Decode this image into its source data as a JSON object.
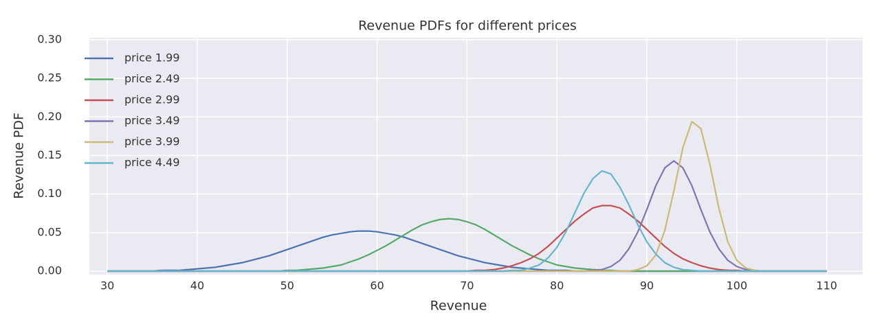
{
  "chart_data": {
    "type": "line",
    "title": "Revenue PDFs for different prices",
    "x_label": "Revenue",
    "y_label": "Revenue PDF",
    "x": [
      30,
      31,
      32,
      33,
      34,
      35,
      36,
      37,
      38,
      39,
      40,
      41,
      42,
      43,
      44,
      45,
      46,
      47,
      48,
      49,
      50,
      51,
      52,
      53,
      54,
      55,
      56,
      57,
      58,
      59,
      60,
      61,
      62,
      63,
      64,
      65,
      66,
      67,
      68,
      69,
      70,
      71,
      72,
      73,
      74,
      75,
      76,
      77,
      78,
      79,
      80,
      81,
      82,
      83,
      84,
      85,
      86,
      87,
      88,
      89,
      90,
      91,
      92,
      93,
      94,
      95,
      96,
      97,
      98,
      99,
      100,
      101,
      102,
      103,
      104,
      105,
      106,
      107,
      108,
      109,
      110
    ],
    "series": [
      {
        "name": "price 1.99",
        "color": "#4c72b0",
        "values": [
          0,
          0,
          0,
          0,
          0,
          0,
          0.001,
          0.001,
          0.001,
          0.002,
          0.003,
          0.004,
          0.005,
          0.007,
          0.009,
          0.011,
          0.014,
          0.017,
          0.02,
          0.024,
          0.028,
          0.032,
          0.036,
          0.04,
          0.044,
          0.047,
          0.049,
          0.051,
          0.052,
          0.052,
          0.051,
          0.049,
          0.047,
          0.044,
          0.04,
          0.036,
          0.032,
          0.028,
          0.024,
          0.02,
          0.017,
          0.014,
          0.011,
          0.009,
          0.007,
          0.005,
          0.004,
          0.003,
          0.002,
          0.001,
          0.001,
          0.001,
          0,
          0,
          0,
          0,
          0,
          0,
          0,
          0,
          0,
          0,
          0,
          0,
          0,
          0,
          0,
          0,
          0,
          0,
          0,
          0,
          0,
          0,
          0,
          0,
          0,
          0,
          0,
          0,
          0
        ]
      },
      {
        "name": "price 2.49",
        "color": "#55a868",
        "values": [
          0,
          0,
          0,
          0,
          0,
          0,
          0,
          0,
          0,
          0,
          0,
          0,
          0,
          0,
          0,
          0,
          0,
          0,
          0,
          0,
          0.001,
          0.001,
          0.002,
          0.003,
          0.004,
          0.006,
          0.008,
          0.012,
          0.016,
          0.021,
          0.027,
          0.033,
          0.04,
          0.047,
          0.054,
          0.06,
          0.064,
          0.067,
          0.068,
          0.067,
          0.064,
          0.06,
          0.054,
          0.047,
          0.04,
          0.033,
          0.027,
          0.021,
          0.016,
          0.012,
          0.008,
          0.006,
          0.004,
          0.003,
          0.002,
          0.001,
          0.001,
          0,
          0,
          0,
          0,
          0,
          0,
          0,
          0,
          0,
          0,
          0,
          0,
          0,
          0,
          0,
          0,
          0,
          0,
          0,
          0,
          0,
          0,
          0,
          0
        ]
      },
      {
        "name": "price 2.99",
        "color": "#c44e52",
        "values": [
          0,
          0,
          0,
          0,
          0,
          0,
          0,
          0,
          0,
          0,
          0,
          0,
          0,
          0,
          0,
          0,
          0,
          0,
          0,
          0,
          0,
          0,
          0,
          0,
          0,
          0,
          0,
          0,
          0,
          0,
          0,
          0,
          0,
          0,
          0,
          0,
          0,
          0,
          0,
          0,
          0,
          0.001,
          0.001,
          0.002,
          0.004,
          0.007,
          0.011,
          0.016,
          0.023,
          0.032,
          0.043,
          0.054,
          0.065,
          0.074,
          0.082,
          0.085,
          0.085,
          0.082,
          0.074,
          0.065,
          0.054,
          0.043,
          0.032,
          0.023,
          0.016,
          0.011,
          0.007,
          0.004,
          0.002,
          0.001,
          0.001,
          0,
          0,
          0,
          0,
          0,
          0,
          0,
          0,
          0,
          0
        ]
      },
      {
        "name": "price 3.49",
        "color": "#8172b2",
        "values": [
          0,
          0,
          0,
          0,
          0,
          0,
          0,
          0,
          0,
          0,
          0,
          0,
          0,
          0,
          0,
          0,
          0,
          0,
          0,
          0,
          0,
          0,
          0,
          0,
          0,
          0,
          0,
          0,
          0,
          0,
          0,
          0,
          0,
          0,
          0,
          0,
          0,
          0,
          0,
          0,
          0,
          0,
          0,
          0,
          0,
          0,
          0,
          0,
          0,
          0,
          0,
          0,
          0,
          0,
          0.001,
          0.002,
          0.006,
          0.014,
          0.029,
          0.051,
          0.08,
          0.111,
          0.134,
          0.143,
          0.134,
          0.111,
          0.08,
          0.051,
          0.029,
          0.014,
          0.006,
          0.002,
          0.001,
          0,
          0,
          0,
          0,
          0,
          0,
          0,
          0
        ]
      },
      {
        "name": "price 3.99",
        "color": "#ccb974",
        "values": [
          0,
          0,
          0,
          0,
          0,
          0,
          0,
          0,
          0,
          0,
          0,
          0,
          0,
          0,
          0,
          0,
          0,
          0,
          0,
          0,
          0,
          0,
          0,
          0,
          0,
          0,
          0,
          0,
          0,
          0,
          0,
          0,
          0,
          0,
          0,
          0,
          0,
          0,
          0,
          0,
          0,
          0,
          0,
          0,
          0,
          0,
          0,
          0,
          0,
          0,
          0,
          0,
          0,
          0,
          0,
          0,
          0,
          0,
          0,
          0.002,
          0.007,
          0.021,
          0.053,
          0.104,
          0.16,
          0.194,
          0.185,
          0.139,
          0.082,
          0.038,
          0.014,
          0.004,
          0.001,
          0,
          0,
          0,
          0,
          0,
          0,
          0,
          0
        ]
      },
      {
        "name": "price 4.49",
        "color": "#64b5cd",
        "values": [
          0,
          0,
          0,
          0,
          0,
          0,
          0,
          0,
          0,
          0,
          0,
          0,
          0,
          0,
          0,
          0,
          0,
          0,
          0,
          0,
          0,
          0,
          0,
          0,
          0,
          0,
          0,
          0,
          0,
          0,
          0,
          0,
          0,
          0,
          0,
          0,
          0,
          0,
          0,
          0,
          0,
          0,
          0,
          0,
          0,
          0.001,
          0.001,
          0.004,
          0.008,
          0.017,
          0.031,
          0.051,
          0.076,
          0.101,
          0.12,
          0.13,
          0.126,
          0.109,
          0.086,
          0.06,
          0.038,
          0.022,
          0.011,
          0.005,
          0.002,
          0.001,
          0,
          0,
          0,
          0,
          0,
          0,
          0,
          0,
          0,
          0,
          0,
          0,
          0,
          0,
          0
        ]
      }
    ],
    "xlim": [
      28,
      114
    ],
    "ylim": [
      0,
      0.3
    ],
    "xticks": [
      30,
      40,
      50,
      60,
      70,
      80,
      90,
      100,
      110
    ],
    "yticks": [
      {
        "value": 0,
        "label": "0.00"
      },
      {
        "value": 0.05,
        "label": "0.05"
      },
      {
        "value": 0.1,
        "label": "0.10"
      },
      {
        "value": 0.15,
        "label": "0.15"
      },
      {
        "value": 0.2,
        "label": "0.20"
      },
      {
        "value": 0.25,
        "label": "0.25"
      },
      {
        "value": 0.3,
        "label": "0.30"
      }
    ],
    "grid": true,
    "legend": "upper left"
  }
}
